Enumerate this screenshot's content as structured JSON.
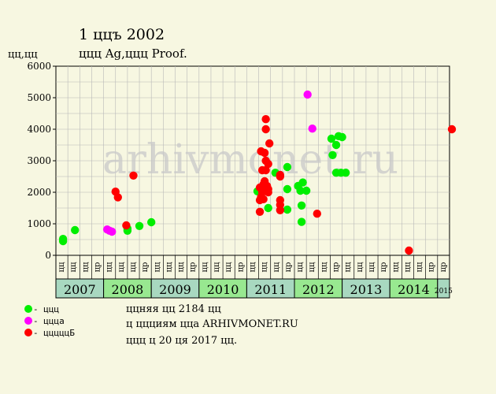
{
  "chart_data": {
    "type": "scatter",
    "title": "1 ццъ 2002",
    "subtitle": "ццц Ag,ццц Proof.",
    "ylabel": "цц,цц",
    "ylim": [
      0,
      6000
    ],
    "yticks": [
      "0",
      "1000",
      "2000",
      "3000",
      "4000",
      "5000",
      "6000"
    ],
    "grid": true,
    "watermark": "arhivmonet.ru",
    "period_labels": [
      "цц",
      "цц",
      "цц",
      "цр",
      "цц",
      "цц",
      "цц",
      "цр",
      "цц",
      "цц",
      "цц",
      "цр",
      "цц",
      "цц",
      "цц",
      "цр",
      "цц",
      "цц",
      "цц",
      "цр",
      "цц",
      "цц",
      "цц",
      "цр",
      "цц",
      "цц",
      "цц",
      "цр",
      "цц",
      "цц",
      "цц",
      "цр",
      "цр"
    ],
    "years": [
      {
        "label": "2007",
        "from": 0,
        "to": 4,
        "color": "#a8d8c0"
      },
      {
        "label": "2008",
        "from": 4,
        "to": 8,
        "color": "#98e890"
      },
      {
        "label": "2009",
        "from": 8,
        "to": 12,
        "color": "#a8d8c0"
      },
      {
        "label": "2010",
        "from": 12,
        "to": 16,
        "color": "#98e890"
      },
      {
        "label": "2011",
        "from": 16,
        "to": 20,
        "color": "#a8d8c0"
      },
      {
        "label": "2012",
        "from": 20,
        "to": 24,
        "color": "#98e890"
      },
      {
        "label": "2013",
        "from": 24,
        "to": 28,
        "color": "#a8d8c0"
      },
      {
        "label": "2014",
        "from": 28,
        "to": 32,
        "color": "#98e890"
      },
      {
        "label": "2015",
        "from": 32,
        "to": 33,
        "color": "#a8d8c0"
      }
    ],
    "series": [
      {
        "color": "#00ee00",
        "points": [
          [
            0.1,
            520
          ],
          [
            0.1,
            450
          ],
          [
            1.1,
            800
          ],
          [
            5.5,
            850
          ],
          [
            5.5,
            780
          ],
          [
            6.5,
            930
          ],
          [
            7.5,
            1050
          ],
          [
            16.4,
            2030
          ],
          [
            17.3,
            1500
          ],
          [
            17.9,
            2620
          ],
          [
            18.9,
            2800
          ],
          [
            18.9,
            2100
          ],
          [
            18.9,
            1450
          ],
          [
            19.8,
            2200
          ],
          [
            20.0,
            2050
          ],
          [
            20.2,
            2310
          ],
          [
            20.1,
            1580
          ],
          [
            20.1,
            1060
          ],
          [
            20.5,
            2050
          ],
          [
            22.6,
            3700
          ],
          [
            22.7,
            3180
          ],
          [
            23.0,
            3500
          ],
          [
            23.2,
            3780
          ],
          [
            23.5,
            3750
          ],
          [
            23.0,
            2620
          ],
          [
            23.4,
            2620
          ],
          [
            23.8,
            2620
          ]
        ]
      },
      {
        "color": "#ff00ff",
        "points": [
          [
            3.8,
            820
          ],
          [
            4.0,
            780
          ],
          [
            4.2,
            750
          ],
          [
            20.6,
            5100
          ],
          [
            21.0,
            4020
          ]
        ]
      },
      {
        "color": "#ff0000",
        "points": [
          [
            4.5,
            2020
          ],
          [
            4.7,
            1840
          ],
          [
            5.4,
            950
          ],
          [
            6.0,
            2530
          ],
          [
            16.6,
            1380
          ],
          [
            16.6,
            1750
          ],
          [
            16.7,
            1850
          ],
          [
            16.9,
            1780
          ],
          [
            16.6,
            2150
          ],
          [
            16.8,
            2000
          ],
          [
            16.9,
            2250
          ],
          [
            17.1,
            2120
          ],
          [
            17.0,
            2350
          ],
          [
            17.2,
            2200
          ],
          [
            17.3,
            2000
          ],
          [
            17.3,
            2100
          ],
          [
            17.1,
            2700
          ],
          [
            16.8,
            2700
          ],
          [
            16.7,
            3300
          ],
          [
            17.0,
            3250
          ],
          [
            17.1,
            3000
          ],
          [
            17.3,
            2900
          ],
          [
            17.4,
            3550
          ],
          [
            17.1,
            4000
          ],
          [
            17.1,
            4320
          ],
          [
            18.3,
            1600
          ],
          [
            18.3,
            1430
          ],
          [
            18.3,
            1750
          ],
          [
            18.3,
            2500
          ],
          [
            18.3,
            2550
          ],
          [
            21.4,
            1320
          ],
          [
            29.1,
            150
          ],
          [
            32.7,
            4000
          ]
        ]
      }
    ]
  },
  "legend": [
    {
      "label": " - ццц",
      "color": "#00ee00"
    },
    {
      "label": " - ццца",
      "color": "#ff00ff"
    },
    {
      "label": " - цццццБ",
      "color": "#ff0000"
    }
  ],
  "notes": [
    "ццняя цц 2184 цц",
    "ц ццциям цца ARHIVMONET.RU",
    "ццц ц 20 ця 2017 цц."
  ]
}
